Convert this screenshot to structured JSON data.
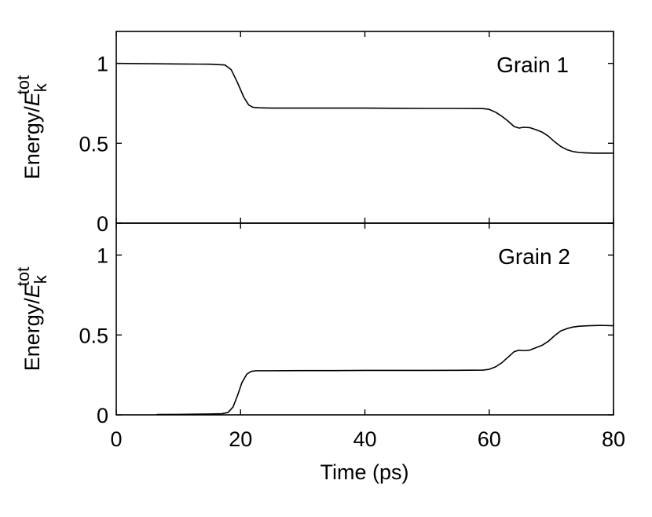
{
  "chart_data": [
    {
      "type": "line",
      "annotation": "Grain 1",
      "ylabel": {
        "main": "Energy/",
        "italic": "E",
        "sub": "k",
        "sup": "tot"
      },
      "xlim": [
        0,
        80
      ],
      "ylim": [
        0,
        1.2
      ],
      "yticks": [
        0,
        0.5,
        1
      ],
      "ytick_labels": [
        "0",
        "0.5",
        "1"
      ],
      "xticks": [
        0,
        20,
        40,
        60,
        80
      ],
      "grid": false,
      "series": [
        {
          "x": [
            0,
            5,
            10,
            15,
            17.5,
            18.5,
            19.5,
            20.5,
            21.3,
            22,
            23,
            25,
            30,
            35,
            40,
            45,
            50,
            55,
            59,
            60,
            61,
            62,
            63,
            64,
            64.8,
            65.5,
            66.5,
            67.5,
            68.5,
            69.5,
            70.5,
            71.5,
            72.5,
            73.5,
            74.5,
            75.5,
            77,
            80
          ],
          "y": [
            1.0,
            0.998,
            0.996,
            0.995,
            0.99,
            0.96,
            0.88,
            0.79,
            0.74,
            0.725,
            0.722,
            0.72,
            0.72,
            0.72,
            0.72,
            0.719,
            0.718,
            0.718,
            0.717,
            0.712,
            0.695,
            0.67,
            0.64,
            0.605,
            0.595,
            0.6,
            0.598,
            0.585,
            0.57,
            0.545,
            0.51,
            0.48,
            0.46,
            0.448,
            0.442,
            0.44,
            0.438,
            0.438
          ]
        }
      ]
    },
    {
      "type": "line",
      "annotation": "Grain 2",
      "ylabel": {
        "main": "Energy/",
        "italic": "E",
        "sub": "k",
        "sup": "tot"
      },
      "xlim": [
        0,
        80
      ],
      "ylim": [
        0,
        1.2
      ],
      "yticks": [
        0,
        0.5,
        1
      ],
      "ytick_labels": [
        "0",
        "0.5",
        "1"
      ],
      "xticks": [
        0,
        20,
        40,
        60,
        80
      ],
      "xtick_labels": [
        "0",
        "20",
        "40",
        "60",
        "80"
      ],
      "xlabel": "Time (ps)",
      "grid": false,
      "series": [
        {
          "x": [
            6.5,
            10,
            15,
            17,
            18,
            18.8,
            19.5,
            20.2,
            21,
            21.7,
            22.5,
            25,
            30,
            35,
            40,
            45,
            50,
            55,
            59,
            60,
            61,
            62,
            63,
            64,
            64.8,
            65.5,
            66.5,
            67.5,
            68.5,
            69.5,
            70.5,
            71.5,
            72.5,
            73.5,
            74.5,
            76,
            78,
            80
          ],
          "y": [
            0.002,
            0.003,
            0.005,
            0.007,
            0.015,
            0.05,
            0.12,
            0.2,
            0.255,
            0.272,
            0.276,
            0.276,
            0.277,
            0.277,
            0.278,
            0.278,
            0.278,
            0.279,
            0.28,
            0.285,
            0.3,
            0.325,
            0.36,
            0.395,
            0.405,
            0.402,
            0.405,
            0.42,
            0.435,
            0.46,
            0.495,
            0.525,
            0.54,
            0.55,
            0.555,
            0.558,
            0.56,
            0.558
          ]
        }
      ]
    }
  ]
}
